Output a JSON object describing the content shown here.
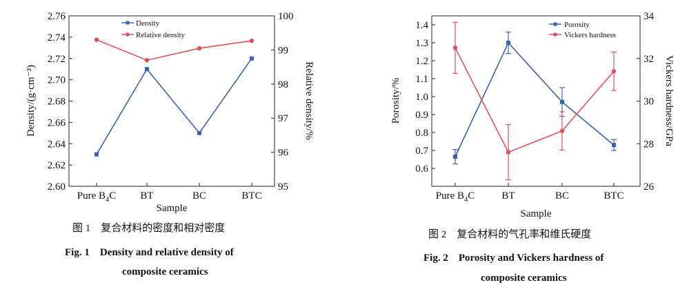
{
  "figures": [
    {
      "caption_cn": "图 1　复合材料的密度和相对密度",
      "caption_en_line1": "Fig. 1　Density and relative density of",
      "caption_en_line2": "composite ceramics"
    },
    {
      "caption_cn": "图 2　复合材料的气孔率和维氏硬度",
      "caption_en_line1": "Fig. 2　Porosity and Vickers hardness of",
      "caption_en_line2": "composite ceramics"
    }
  ],
  "chart_data": [
    {
      "type": "line",
      "categories": [
        "Pure B4C",
        "BT",
        "BC",
        "BTC"
      ],
      "xlabel": "Sample",
      "ylabel_left": "Density/(g·cm⁻³)",
      "ylabel_right": "Relative density/%",
      "ylim_left": [
        2.6,
        2.76
      ],
      "yticks_left": [
        "2.60",
        "2.62",
        "2.64",
        "2.66",
        "2.68",
        "2.70",
        "2.72",
        "2.74",
        "2.76"
      ],
      "ylim_right": [
        95,
        100
      ],
      "yticks_right": [
        "95",
        "96",
        "97",
        "98",
        "99",
        "100"
      ],
      "legend_position": "top-left",
      "series": [
        {
          "name": "Density",
          "axis": "left",
          "color": "#3a62b0",
          "marker": "square",
          "values": [
            2.63,
            2.71,
            2.65,
            2.72
          ]
        },
        {
          "name": "Relative density",
          "axis": "right",
          "color": "#e0505a",
          "marker": "circle",
          "values": [
            99.3,
            98.7,
            99.05,
            99.27
          ]
        }
      ]
    },
    {
      "type": "line",
      "categories": [
        "Pure B4C",
        "BT",
        "BC",
        "BTC"
      ],
      "xlabel": "Sample",
      "ylabel_left": "Porosity/%",
      "ylabel_right": "Vickers hardness/GPa",
      "ylim_left": [
        0.5,
        1.45
      ],
      "yticks_left": [
        "0.6",
        "0.7",
        "0.8",
        "0.9",
        "1.0",
        "1.1",
        "1.2",
        "1.3",
        "1.4"
      ],
      "ylim_right": [
        26,
        34
      ],
      "yticks_right": [
        "26",
        "28",
        "30",
        "32",
        "34"
      ],
      "legend_position": "top-right",
      "series": [
        {
          "name": "Porosity",
          "axis": "left",
          "color": "#3a62b0",
          "marker": "square",
          "values": [
            0.665,
            1.3,
            0.97,
            0.73
          ],
          "errors": [
            0.04,
            0.06,
            0.08,
            0.03
          ]
        },
        {
          "name": "Vickers hardness",
          "axis": "right",
          "color": "#e0505a",
          "marker": "circle",
          "values": [
            32.5,
            27.6,
            28.6,
            31.4
          ],
          "errors": [
            1.2,
            1.3,
            0.9,
            0.9
          ]
        }
      ]
    }
  ]
}
